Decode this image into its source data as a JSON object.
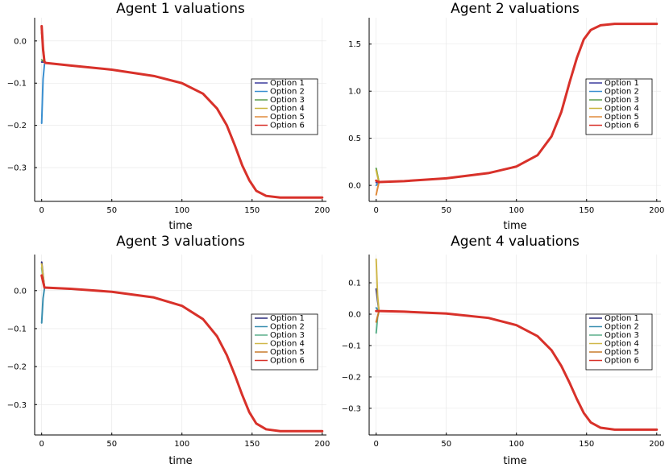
{
  "chart_data": [
    {
      "type": "line",
      "title": "Agent 1 valuations",
      "xlabel": "time",
      "ylabel": "",
      "xlim": [
        -5,
        203
      ],
      "ylim": [
        -0.38,
        0.055
      ],
      "xticks": [
        0,
        50,
        100,
        150,
        200
      ],
      "xtick_labels": [
        "0",
        "50",
        "100",
        "150",
        "200"
      ],
      "yticks": [
        0.0,
        -0.1,
        -0.2,
        -0.3
      ],
      "ytick_labels": [
        "0.0",
        "−0.1",
        "−0.2",
        "−0.3"
      ],
      "legend_position": "right",
      "series": [
        {
          "name": "Option 1",
          "color": "#3b3b9c",
          "values": [
            [
              0,
              -0.05
            ],
            [
              2,
              -0.05
            ]
          ]
        },
        {
          "name": "Option 2",
          "color": "#3a8fd0",
          "values": [
            [
              0,
              -0.195
            ],
            [
              1,
              -0.09
            ],
            [
              2,
              -0.055
            ]
          ]
        },
        {
          "name": "Option 3",
          "color": "#5a9e4a",
          "values": [
            [
              0,
              -0.045
            ],
            [
              2,
              -0.05
            ]
          ]
        },
        {
          "name": "Option 4",
          "color": "#c9b33a",
          "values": [
            [
              0,
              0.02
            ],
            [
              2,
              -0.045
            ]
          ]
        },
        {
          "name": "Option 5",
          "color": "#e08a3a",
          "values": [
            [
              0,
              0.02
            ],
            [
              2,
              -0.05
            ]
          ]
        },
        {
          "name": "Option 6",
          "color": "#d8312a",
          "values": [
            [
              0,
              0.035
            ],
            [
              1,
              -0.02
            ],
            [
              2,
              -0.05
            ],
            [
              3,
              -0.052
            ],
            [
              20,
              -0.058
            ],
            [
              50,
              -0.068
            ],
            [
              80,
              -0.083
            ],
            [
              100,
              -0.1
            ],
            [
              115,
              -0.125
            ],
            [
              125,
              -0.16
            ],
            [
              132,
              -0.2
            ],
            [
              138,
              -0.25
            ],
            [
              143,
              -0.295
            ],
            [
              148,
              -0.33
            ],
            [
              153,
              -0.355
            ],
            [
              160,
              -0.367
            ],
            [
              170,
              -0.371
            ],
            [
              200,
              -0.371
            ]
          ]
        }
      ]
    },
    {
      "type": "line",
      "title": "Agent 2 valuations",
      "xlabel": "time",
      "ylabel": "",
      "xlim": [
        -5,
        203
      ],
      "ylim": [
        -0.17,
        1.78
      ],
      "xticks": [
        0,
        50,
        100,
        150,
        200
      ],
      "xtick_labels": [
        "0",
        "50",
        "100",
        "150",
        "200"
      ],
      "yticks": [
        0.0,
        0.5,
        1.0,
        1.5
      ],
      "ytick_labels": [
        "0.0",
        "0.5",
        "1.0",
        "1.5"
      ],
      "legend_position": "right",
      "series": [
        {
          "name": "Option 1",
          "color": "#3b3b9c",
          "values": [
            [
              0,
              0.03
            ],
            [
              2,
              0.035
            ]
          ]
        },
        {
          "name": "Option 2",
          "color": "#3a8fd0",
          "values": [
            [
              0,
              0.0
            ],
            [
              2,
              0.035
            ]
          ]
        },
        {
          "name": "Option 3",
          "color": "#5a9e4a",
          "values": [
            [
              0,
              0.18
            ],
            [
              2,
              0.035
            ]
          ]
        },
        {
          "name": "Option 4",
          "color": "#c9b33a",
          "values": [
            [
              0,
              0.16
            ],
            [
              2,
              0.035
            ]
          ]
        },
        {
          "name": "Option 5",
          "color": "#e08a3a",
          "values": [
            [
              0,
              -0.1
            ],
            [
              2,
              0.035
            ]
          ]
        },
        {
          "name": "Option 6",
          "color": "#d8312a",
          "values": [
            [
              0,
              0.05
            ],
            [
              2,
              0.035
            ],
            [
              20,
              0.045
            ],
            [
              50,
              0.075
            ],
            [
              80,
              0.13
            ],
            [
              100,
              0.2
            ],
            [
              115,
              0.32
            ],
            [
              125,
              0.52
            ],
            [
              132,
              0.78
            ],
            [
              138,
              1.1
            ],
            [
              143,
              1.35
            ],
            [
              148,
              1.55
            ],
            [
              153,
              1.65
            ],
            [
              160,
              1.7
            ],
            [
              170,
              1.715
            ],
            [
              200,
              1.715
            ]
          ]
        }
      ]
    },
    {
      "type": "line",
      "title": "Agent 3 valuations",
      "xlabel": "time",
      "ylabel": "",
      "xlim": [
        -5,
        203
      ],
      "ylim": [
        -0.38,
        0.095
      ],
      "xticks": [
        0,
        50,
        100,
        150,
        200
      ],
      "xtick_labels": [
        "0",
        "50",
        "100",
        "150",
        "200"
      ],
      "yticks": [
        0.0,
        -0.1,
        -0.2,
        -0.3
      ],
      "ytick_labels": [
        "0.0",
        "−0.1",
        "−0.2",
        "−0.3"
      ],
      "legend_position": "right",
      "series": [
        {
          "name": "Option 1",
          "color": "#2a2a7a",
          "values": [
            [
              0,
              0.075
            ],
            [
              2,
              0.008
            ]
          ]
        },
        {
          "name": "Option 2",
          "color": "#3a8fb0",
          "values": [
            [
              0,
              -0.085
            ],
            [
              1,
              -0.02
            ],
            [
              2,
              0.006
            ]
          ]
        },
        {
          "name": "Option 3",
          "color": "#5aaf8a",
          "values": [
            [
              0,
              0.06
            ],
            [
              2,
              0.008
            ]
          ]
        },
        {
          "name": "Option 4",
          "color": "#d0b84a",
          "values": [
            [
              0,
              0.07
            ],
            [
              2,
              0.008
            ]
          ]
        },
        {
          "name": "Option 5",
          "color": "#c87a2a",
          "values": [
            [
              0,
              0.04
            ],
            [
              2,
              0.008
            ]
          ]
        },
        {
          "name": "Option 6",
          "color": "#d8312a",
          "values": [
            [
              0,
              0.04
            ],
            [
              2,
              0.008
            ],
            [
              20,
              0.005
            ],
            [
              50,
              -0.003
            ],
            [
              80,
              -0.018
            ],
            [
              100,
              -0.04
            ],
            [
              115,
              -0.075
            ],
            [
              125,
              -0.12
            ],
            [
              132,
              -0.17
            ],
            [
              138,
              -0.225
            ],
            [
              143,
              -0.275
            ],
            [
              148,
              -0.32
            ],
            [
              153,
              -0.35
            ],
            [
              160,
              -0.365
            ],
            [
              170,
              -0.37
            ],
            [
              200,
              -0.37
            ]
          ]
        }
      ]
    },
    {
      "type": "line",
      "title": "Agent 4 valuations",
      "xlabel": "time",
      "ylabel": "",
      "xlim": [
        -5,
        203
      ],
      "ylim": [
        -0.385,
        0.19
      ],
      "xticks": [
        0,
        50,
        100,
        150,
        200
      ],
      "xtick_labels": [
        "0",
        "50",
        "100",
        "150",
        "200"
      ],
      "yticks": [
        0.1,
        0.0,
        -0.1,
        -0.2,
        -0.3
      ],
      "ytick_labels": [
        "0.1",
        "0.0",
        "−0.1",
        "−0.2",
        "−0.3"
      ],
      "legend_position": "right",
      "series": [
        {
          "name": "Option 1",
          "color": "#2a2a7a",
          "values": [
            [
              0,
              0.08
            ],
            [
              2,
              0.01
            ]
          ]
        },
        {
          "name": "Option 2",
          "color": "#3a8fb0",
          "values": [
            [
              0,
              0.02
            ],
            [
              2,
              0.01
            ]
          ]
        },
        {
          "name": "Option 3",
          "color": "#5aaf8a",
          "values": [
            [
              0,
              -0.06
            ],
            [
              1,
              -0.01
            ],
            [
              2,
              0.01
            ]
          ]
        },
        {
          "name": "Option 4",
          "color": "#d0b84a",
          "values": [
            [
              0,
              0.175
            ],
            [
              1,
              0.06
            ],
            [
              2,
              0.01
            ]
          ]
        },
        {
          "name": "Option 5",
          "color": "#c87a2a",
          "values": [
            [
              0,
              -0.025
            ],
            [
              2,
              0.01
            ]
          ]
        },
        {
          "name": "Option 6",
          "color": "#d8312a",
          "values": [
            [
              0,
              0.01
            ],
            [
              2,
              0.01
            ],
            [
              20,
              0.008
            ],
            [
              50,
              0.002
            ],
            [
              80,
              -0.012
            ],
            [
              100,
              -0.035
            ],
            [
              115,
              -0.07
            ],
            [
              125,
              -0.115
            ],
            [
              132,
              -0.165
            ],
            [
              138,
              -0.22
            ],
            [
              143,
              -0.27
            ],
            [
              148,
              -0.315
            ],
            [
              153,
              -0.345
            ],
            [
              160,
              -0.362
            ],
            [
              170,
              -0.368
            ],
            [
              200,
              -0.368
            ]
          ]
        }
      ]
    }
  ]
}
